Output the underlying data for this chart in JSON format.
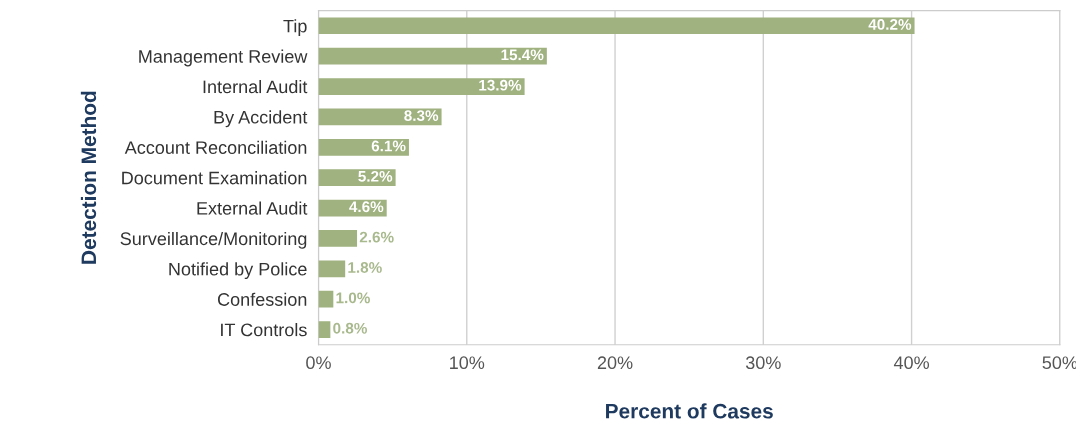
{
  "chart_data": {
    "type": "bar",
    "orientation": "horizontal",
    "xlabel": "Percent of Cases",
    "ylabel": "Detection Method",
    "categories": [
      "Tip",
      "Management Review",
      "Internal Audit",
      "By Accident",
      "Account Reconciliation",
      "Document Examination",
      "External Audit",
      "Surveillance/Monitoring",
      "Notified by Police",
      "Confession",
      "IT Controls"
    ],
    "values": [
      40.2,
      15.4,
      13.9,
      8.3,
      6.1,
      5.2,
      4.6,
      2.6,
      1.8,
      1.0,
      0.8
    ],
    "value_labels": [
      "40.2%",
      "15.4%",
      "13.9%",
      "8.3%",
      "6.1%",
      "5.2%",
      "4.6%",
      "2.6%",
      "1.8%",
      "1.0%",
      "0.8%"
    ],
    "color": "#9fb27f",
    "xlim": [
      0,
      50
    ],
    "xticks": [
      {
        "value": 0,
        "label": "0%"
      },
      {
        "value": 10,
        "label": "10%"
      },
      {
        "value": 20,
        "label": "20%"
      },
      {
        "value": 30,
        "label": "30%"
      },
      {
        "value": 40,
        "label": "40%"
      },
      {
        "value": 50,
        "label": "50%"
      }
    ],
    "grid": "x",
    "legend": false
  }
}
